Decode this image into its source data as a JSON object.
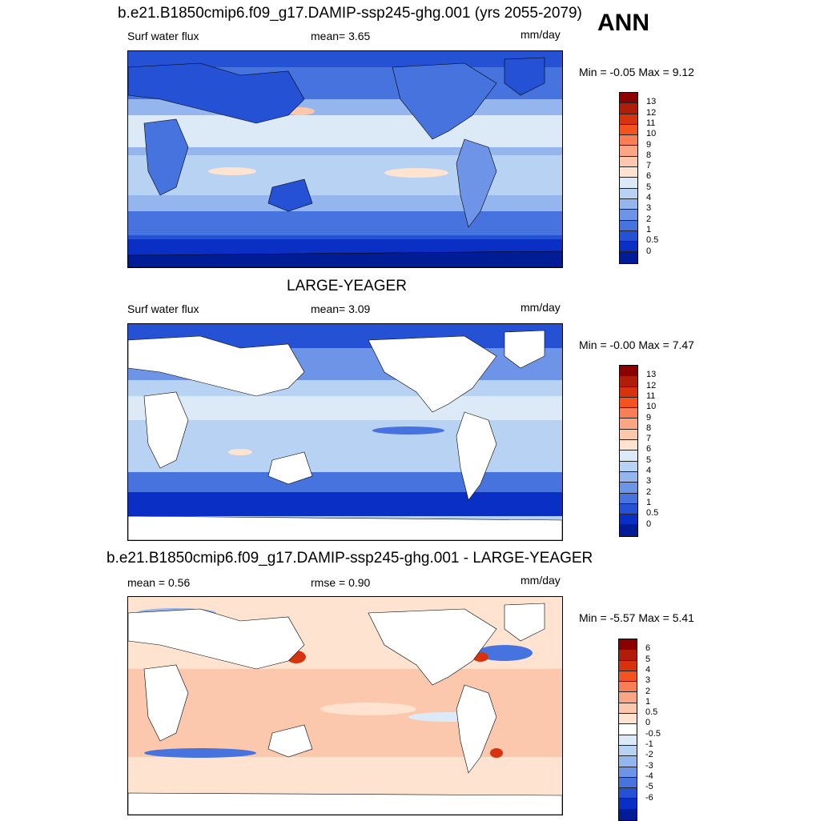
{
  "season": "ANN",
  "panels": [
    {
      "id": "case",
      "title": "b.e21.B1850cmip6.f09_g17.DAMIP-ssp245-ghg.001 (yrs 2055-2079)",
      "left_label": "Surf water flux",
      "center_label": "mean=   3.65",
      "units": "mm/day",
      "minmax": "Min =  -0.05 Max =    9.12",
      "colorbar_ticks": [
        "13",
        "12",
        "11",
        "10",
        "9",
        "8",
        "7",
        "6",
        "5",
        "4",
        "3",
        "2",
        "1",
        "0.5",
        "0"
      ],
      "colorbar_colors": [
        "#8b0000",
        "#b01e0a",
        "#d8330f",
        "#f3541f",
        "#f87f55",
        "#faa684",
        "#fcc8ad",
        "#fde3d0",
        "#dceaf8",
        "#b8d2f4",
        "#94b5ee",
        "#6d94e6",
        "#4773de",
        "#2551d5",
        "#0a2fc4",
        "#001c96"
      ],
      "ocean_color": "#b5cdf2",
      "land_masked": false
    },
    {
      "id": "obs",
      "title": "LARGE-YEAGER",
      "left_label": "Surf water flux",
      "center_label": "mean=   3.09",
      "units": "mm/day",
      "minmax": "Min =  -0.00 Max =    7.47",
      "colorbar_ticks": [
        "13",
        "12",
        "11",
        "10",
        "9",
        "8",
        "7",
        "6",
        "5",
        "4",
        "3",
        "2",
        "1",
        "0.5",
        "0"
      ],
      "colorbar_colors": [
        "#8b0000",
        "#b01e0a",
        "#d8330f",
        "#f3541f",
        "#f87f55",
        "#faa684",
        "#fcc8ad",
        "#fde3d0",
        "#dceaf8",
        "#b8d2f4",
        "#94b5ee",
        "#6d94e6",
        "#4773de",
        "#2551d5",
        "#0a2fc4",
        "#001c96"
      ],
      "ocean_color": "#b5cdf2",
      "land_masked": true
    },
    {
      "id": "diff",
      "title": "b.e21.B1850cmip6.f09_g17.DAMIP-ssp245-ghg.001 - LARGE-YEAGER",
      "left_label": "mean =   0.56",
      "center_label": "rmse =   0.90",
      "units": "mm/day",
      "minmax": "Min =  -5.57 Max =    5.41",
      "colorbar_ticks": [
        "6",
        "5",
        "4",
        "3",
        "2",
        "1",
        "0.5",
        "0",
        "-0.5",
        "-1",
        "-2",
        "-3",
        "-4",
        "-5",
        "-6"
      ],
      "colorbar_colors": [
        "#8b0000",
        "#b01e0a",
        "#d8330f",
        "#f3541f",
        "#f87f55",
        "#faa684",
        "#fcc8ad",
        "#fde3d0",
        "#ffffff",
        "#dceaf8",
        "#b8d2f4",
        "#94b5ee",
        "#6d94e6",
        "#4773de",
        "#2551d5",
        "#0a2fc4",
        "#001c96"
      ],
      "ocean_color": "#fbd0b8",
      "land_masked": true
    }
  ]
}
